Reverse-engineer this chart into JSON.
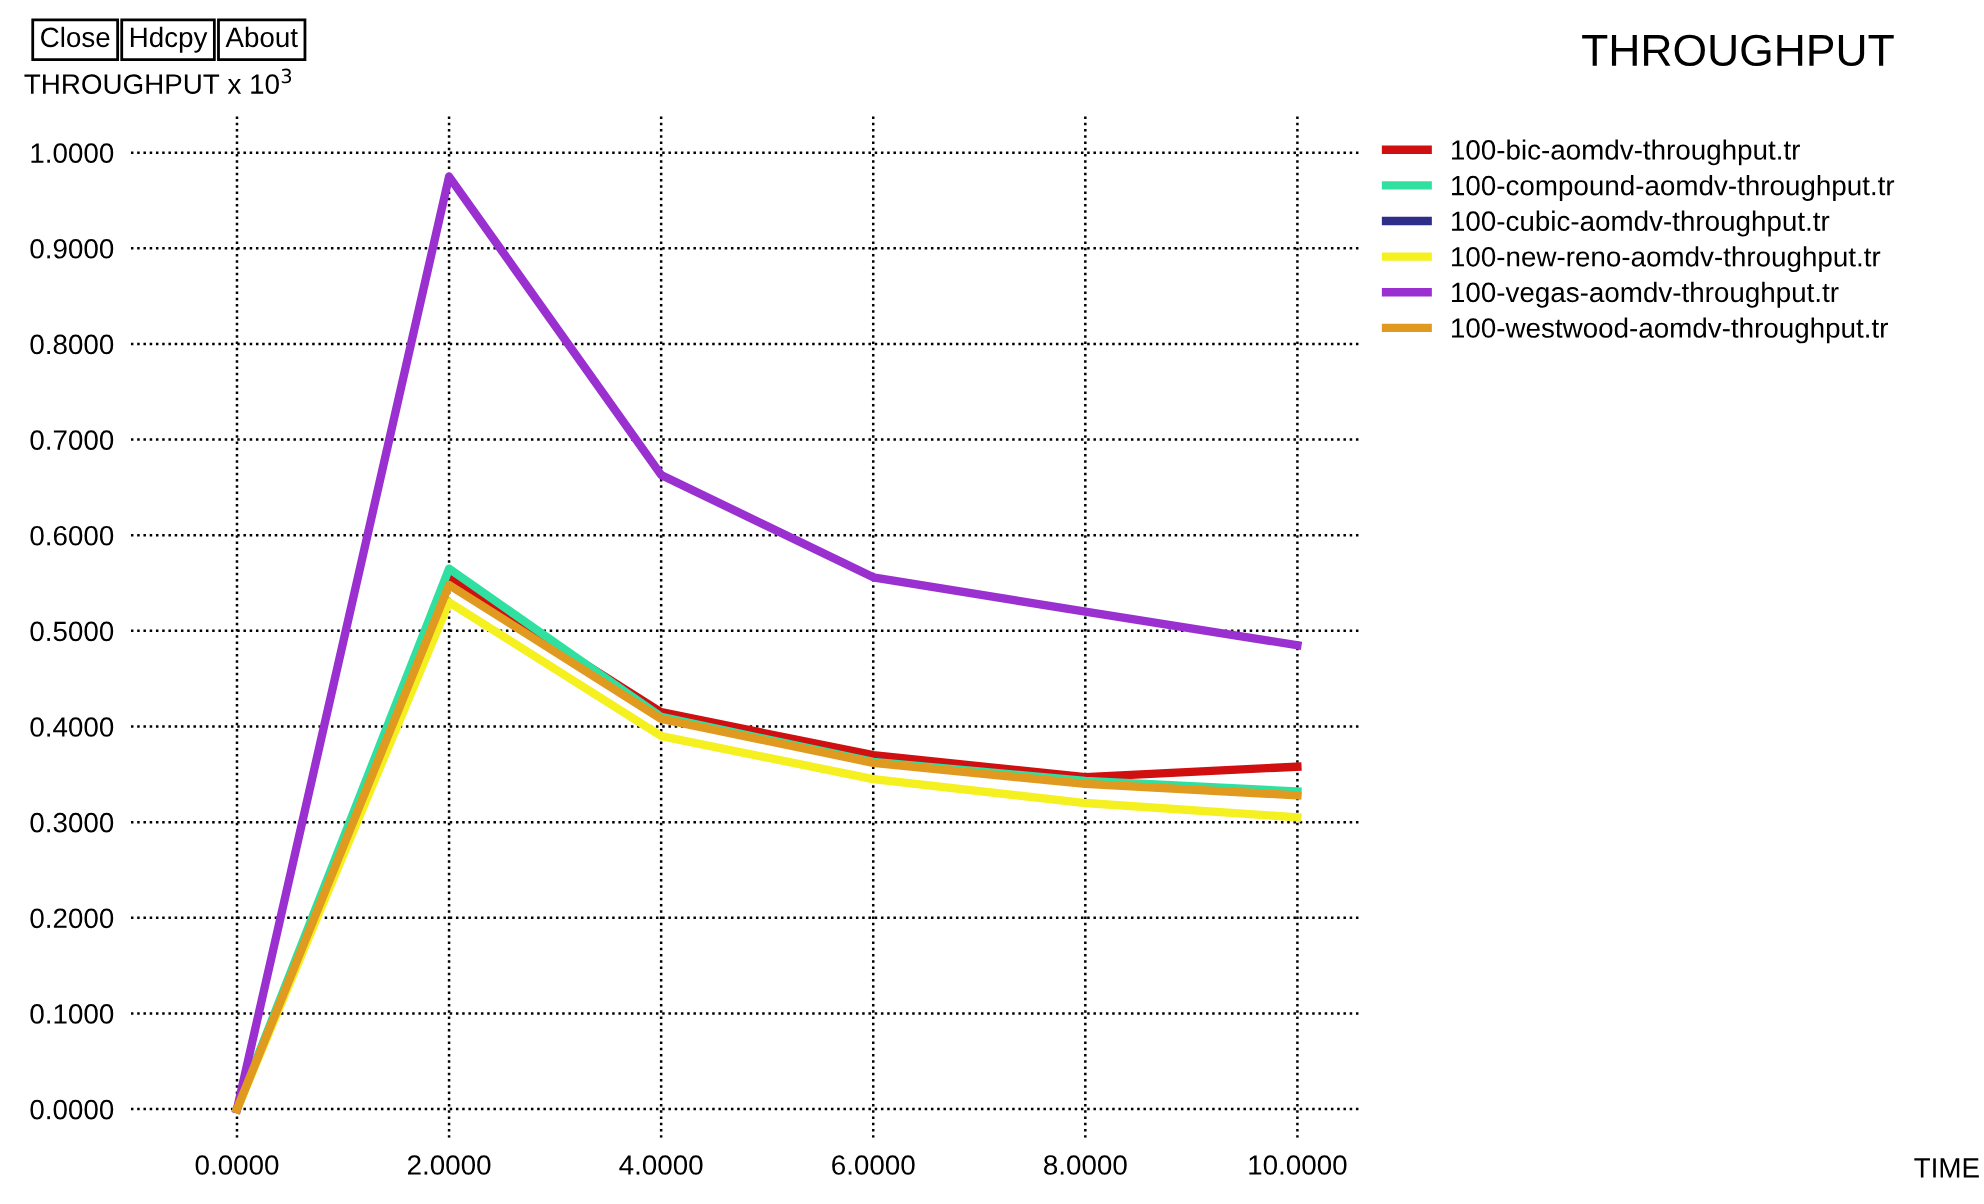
{
  "chart_data": {
    "type": "line",
    "title": "THROUGHPUT",
    "ylabel": "THROUGHPUT x 10$^{3}$",
    "annotations": [
      "Close",
      "Hdcpy",
      "About",
      "TIME"
    ],
    "x": [
      0,
      2,
      4,
      6,
      8,
      10
    ],
    "series": [
      {
        "name": "100-bic-aomdv-throughput.tr",
        "color": "#d01010",
        "values": [
          0,
          0.555,
          0.415,
          0.37,
          0.347,
          0.358
        ]
      },
      {
        "name": "100-compound-aomdv-throughput.tr",
        "color": "#30e0a0",
        "values": [
          0,
          0.565,
          0.41,
          0.363,
          0.343,
          0.332
        ]
      },
      {
        "name": "100-cubic-aomdv-throughput.tr",
        "color": "#2e2e8a",
        "values": [
          null,
          null,
          null,
          null,
          null,
          null
        ]
      },
      {
        "name": "100-new-reno-aomdv-throughput.tr",
        "color": "#f5f020",
        "values": [
          0,
          0.53,
          0.39,
          0.345,
          0.32,
          0.305
        ]
      },
      {
        "name": "100-vegas-aomdv-throughput.tr",
        "color": "#9a30d0",
        "values": [
          0,
          0.975,
          0.663,
          0.556,
          0.52,
          0.485
        ]
      },
      {
        "name": "100-westwood-aomdv-throughput.tr",
        "color": "#e09a20",
        "values": [
          0,
          0.548,
          0.408,
          0.362,
          0.34,
          0.328
        ]
      }
    ],
    "xlim": [
      -1,
      10.6
    ],
    "ylim": [
      -0.03,
      1.04
    ],
    "xticks": [
      {
        "value": 0,
        "label": "0.0000"
      },
      {
        "value": 2,
        "label": "2.0000"
      },
      {
        "value": 4,
        "label": "4.0000"
      },
      {
        "value": 6,
        "label": "6.0000"
      },
      {
        "value": 8,
        "label": "8.0000"
      },
      {
        "value": 10,
        "label": "10.0000"
      }
    ],
    "yticks": [
      {
        "value": 0,
        "label": "0.0000"
      },
      {
        "value": 0.1,
        "label": "0.1000"
      },
      {
        "value": 0.2,
        "label": "0.2000"
      },
      {
        "value": 0.3,
        "label": "0.3000"
      },
      {
        "value": 0.4,
        "label": "0.4000"
      },
      {
        "value": 0.5,
        "label": "0.5000"
      },
      {
        "value": 0.6,
        "label": "0.6000"
      },
      {
        "value": 0.7,
        "label": "0.7000"
      },
      {
        "value": 0.8,
        "label": "0.8000"
      },
      {
        "value": 0.9,
        "label": "0.9000"
      },
      {
        "value": 1.0,
        "label": "1.0000"
      }
    ],
    "grid": true,
    "legend": "right",
    "line_style": "solid",
    "marker": "none"
  }
}
